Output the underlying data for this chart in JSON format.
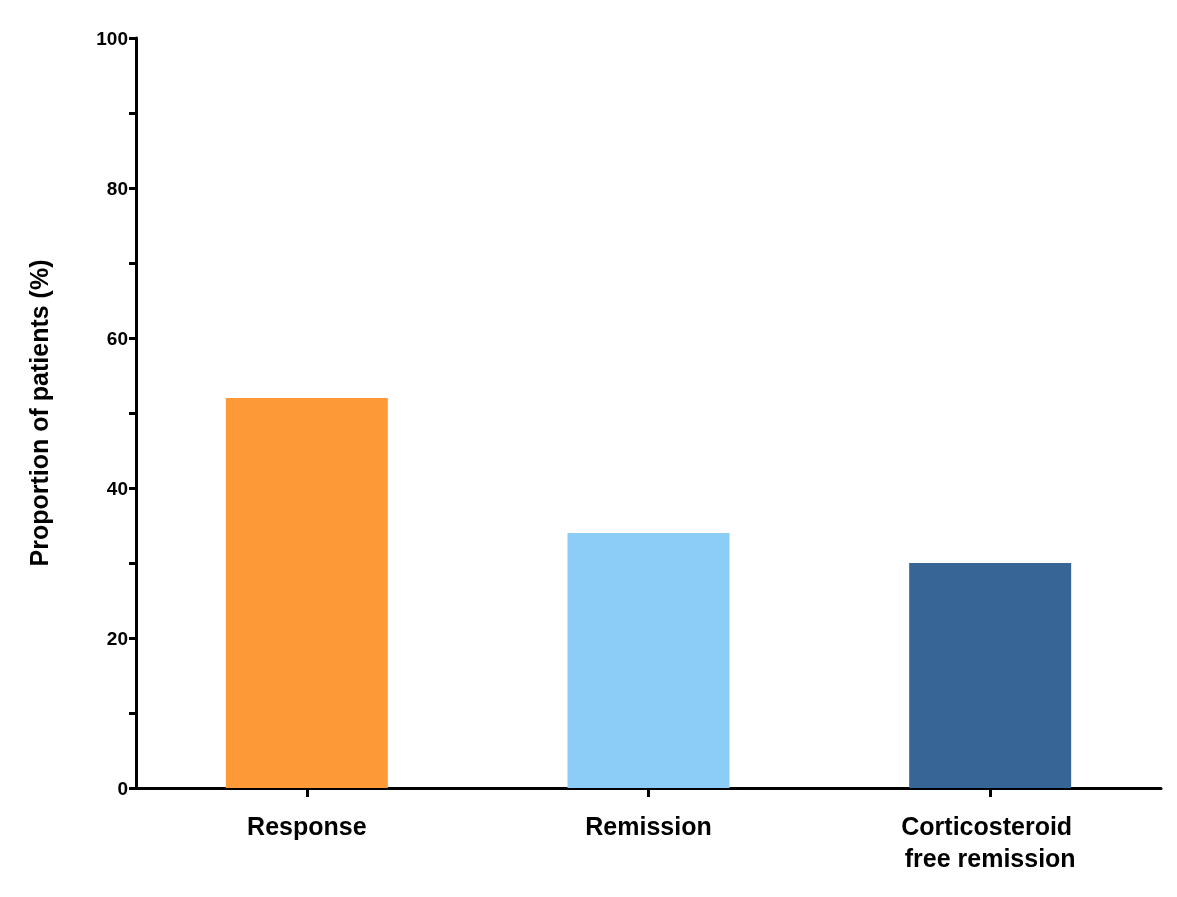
{
  "chart_data": {
    "type": "bar",
    "ylabel": "Proportion of patients (%)",
    "categories": [
      "Response",
      "Remission",
      "Corticosteroid free remission"
    ],
    "values": [
      52,
      34,
      30
    ],
    "colors": [
      "#fd9a37",
      "#8bcdf6",
      "#376596"
    ],
    "ylim": [
      0,
      100
    ],
    "yticks": [
      0,
      {
        "value": 10,
        "label": null
      },
      20,
      {
        "value": 30,
        "label": null
      },
      40,
      {
        "value": 50,
        "label": null
      },
      60,
      {
        "value": 70,
        "label": null
      },
      80,
      {
        "value": 90,
        "label": null
      },
      100
    ],
    "grid": false
  }
}
